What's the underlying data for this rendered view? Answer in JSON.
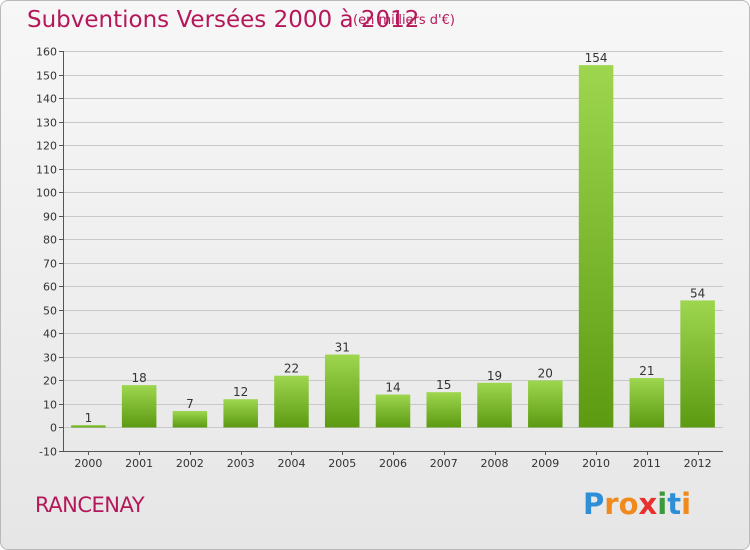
{
  "header": {
    "title": "Subventions Versées 2000 à 2012",
    "subtitle": "(en milliers d'€)"
  },
  "commune": "RANCENAY",
  "logo": {
    "text": "Proxiti",
    "letters": [
      "P",
      "r",
      "o",
      "x",
      "i",
      "t",
      "i"
    ],
    "colors": [
      "#2e8fd6",
      "#f08a1c",
      "#f08a1c",
      "#e8312f",
      "#3a9a3a",
      "#2e8fd6",
      "#f08a1c"
    ]
  },
  "colors": {
    "title": "#b5185a",
    "bar_light": "#9ed64f",
    "bar_dark": "#5c9a12",
    "grid": "#c8c8c8"
  },
  "chart_data": {
    "type": "bar",
    "title": "Subventions Versées 2000 à 2012",
    "subtitle": "(en milliers d'€)",
    "categories": [
      "2000",
      "2001",
      "2002",
      "2003",
      "2004",
      "2005",
      "2006",
      "2007",
      "2008",
      "2009",
      "2010",
      "2011",
      "2012"
    ],
    "values": [
      1,
      18,
      7,
      12,
      22,
      31,
      14,
      15,
      19,
      20,
      154,
      21,
      54
    ],
    "ylim": [
      -10,
      160
    ],
    "yticks": [
      -10,
      0,
      10,
      20,
      30,
      40,
      50,
      60,
      70,
      80,
      90,
      100,
      110,
      120,
      130,
      140,
      150,
      160
    ],
    "xlabel": "",
    "ylabel": "",
    "grid": true,
    "data_labels": true
  }
}
